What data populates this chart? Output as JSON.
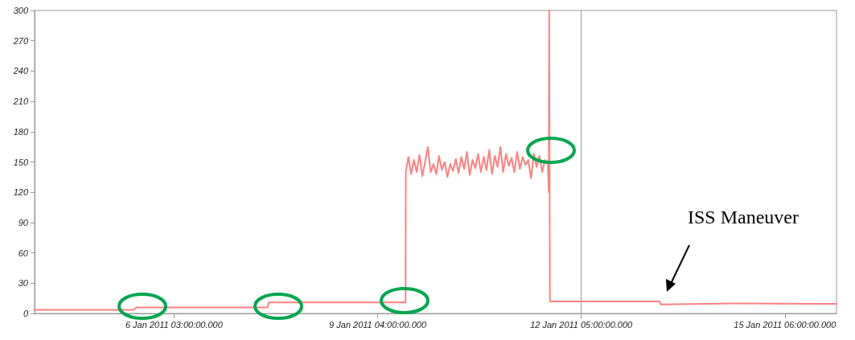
{
  "chart_data": {
    "type": "line",
    "xlim": [
      "2011-01-04T01:00",
      "2011-01-16T00:30"
    ],
    "ylim": [
      0,
      300
    ],
    "xticks": [
      {
        "value": "2011-01-06T03:00",
        "label": "6 Jan 2011 03:00:00.000"
      },
      {
        "value": "2011-01-09T04:00",
        "label": "9 Jan 2011 04:00:00.000"
      },
      {
        "value": "2011-01-12T05:00",
        "label": "12 Jan 2011 05:00:00.000"
      },
      {
        "value": "2011-01-15T06:00",
        "label": "15 Jan 2011 06:00:00.000"
      }
    ],
    "yticks": [
      0,
      30,
      60,
      90,
      120,
      150,
      180,
      210,
      240,
      270,
      300
    ],
    "grid": false,
    "marker": "none",
    "line_style": "solid",
    "ref_lines": [
      {
        "axis": "x",
        "value": "2011-01-12T05:00",
        "label": null,
        "color": "#999999"
      }
    ],
    "annotations": [
      "ISS Maneuver"
    ],
    "series": [
      {
        "color": "#ff8080",
        "x": [
          "2011-01-04T01:00",
          "2011-01-05T12:30",
          "2011-01-05T13:30",
          "2011-01-07T12:30",
          "2011-01-07T13:00",
          "2011-01-09T14:00",
          "2011-01-09T14:05",
          "2011-01-09T15:00",
          "2011-01-09T16:00",
          "2011-01-09T17:00",
          "2011-01-09T18:00",
          "2011-01-09T19:00",
          "2011-01-09T20:00",
          "2011-01-09T21:00",
          "2011-01-09T22:00",
          "2011-01-09T23:00",
          "2011-01-10T00:00",
          "2011-01-10T01:00",
          "2011-01-10T02:00",
          "2011-01-10T03:00",
          "2011-01-10T04:00",
          "2011-01-10T05:00",
          "2011-01-10T06:00",
          "2011-01-10T07:00",
          "2011-01-10T08:00",
          "2011-01-10T09:00",
          "2011-01-10T10:00",
          "2011-01-10T11:00",
          "2011-01-10T12:00",
          "2011-01-10T13:00",
          "2011-01-10T14:00",
          "2011-01-10T15:00",
          "2011-01-10T16:00",
          "2011-01-10T17:00",
          "2011-01-10T18:00",
          "2011-01-10T19:00",
          "2011-01-10T20:00",
          "2011-01-10T21:00",
          "2011-01-10T22:00",
          "2011-01-10T23:00",
          "2011-01-11T00:00",
          "2011-01-11T01:00",
          "2011-01-11T02:00",
          "2011-01-11T03:00",
          "2011-01-11T04:00",
          "2011-01-11T05:00",
          "2011-01-11T06:00",
          "2011-01-11T07:00",
          "2011-01-11T08:00",
          "2011-01-11T09:00",
          "2011-01-11T10:00",
          "2011-01-11T11:00",
          "2011-01-11T12:00",
          "2011-01-11T13:00",
          "2011-01-11T14:00",
          "2011-01-11T15:00",
          "2011-01-11T16:00",
          "2011-01-11T17:00",
          "2011-01-11T17:20",
          "2011-01-11T17:30",
          "2011-01-11T17:45",
          "2011-01-13T09:00",
          "2011-01-13T09:30",
          "2011-01-14T12:00",
          "2011-01-16T00:30"
        ],
        "values": [
          3.5,
          3.5,
          6,
          6,
          11,
          11,
          140,
          155,
          138,
          152,
          140,
          157,
          136,
          150,
          165,
          140,
          148,
          138,
          156,
          142,
          150,
          135,
          148,
          141,
          153,
          139,
          155,
          143,
          160,
          137,
          152,
          144,
          158,
          140,
          155,
          142,
          162,
          138,
          156,
          145,
          165,
          140,
          158,
          146,
          154,
          140,
          160,
          143,
          155,
          147,
          152,
          134,
          158,
          145,
          156,
          140,
          152,
          148,
          120,
          300,
          12,
          12,
          9,
          10,
          9.5
        ]
      }
    ]
  }
}
